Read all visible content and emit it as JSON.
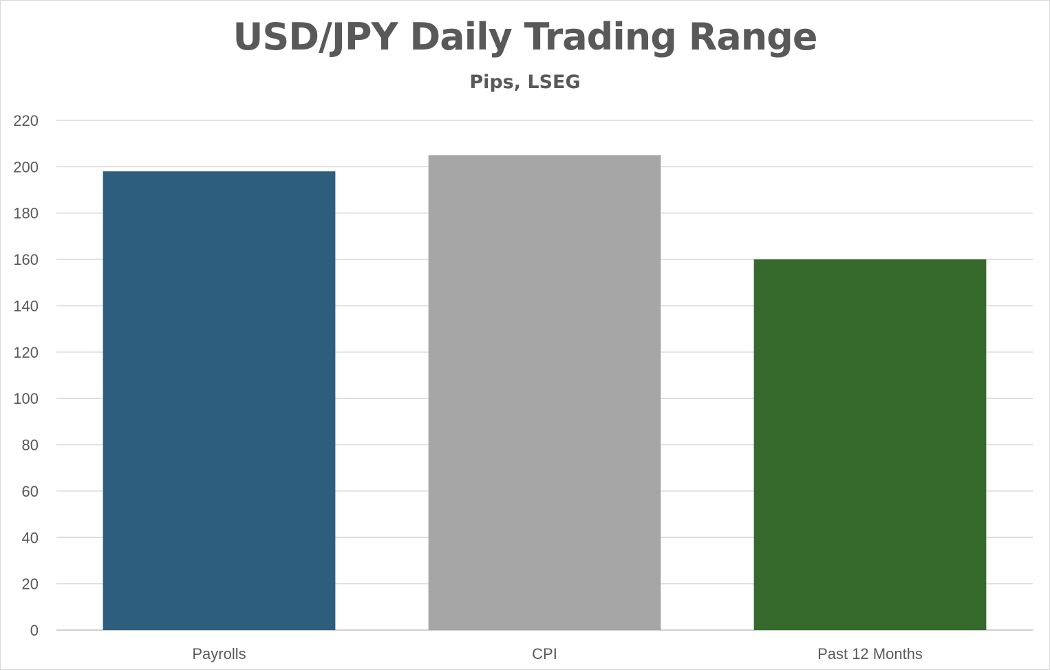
{
  "chart_data": {
    "type": "bar",
    "title": "USD/JPY Daily Trading Range",
    "subtitle": "Pips, LSEG",
    "xlabel": "",
    "ylabel": "",
    "categories": [
      "Payrolls",
      "CPI",
      "Past 12 Months"
    ],
    "values": [
      198,
      205,
      160
    ],
    "colors": [
      "#2e5e7e",
      "#a6a6a6",
      "#356a2c"
    ],
    "ylim": [
      0,
      220
    ],
    "yticks": [
      0,
      20,
      40,
      60,
      80,
      100,
      120,
      140,
      160,
      180,
      200,
      220
    ],
    "grid": true,
    "legend": "none"
  }
}
